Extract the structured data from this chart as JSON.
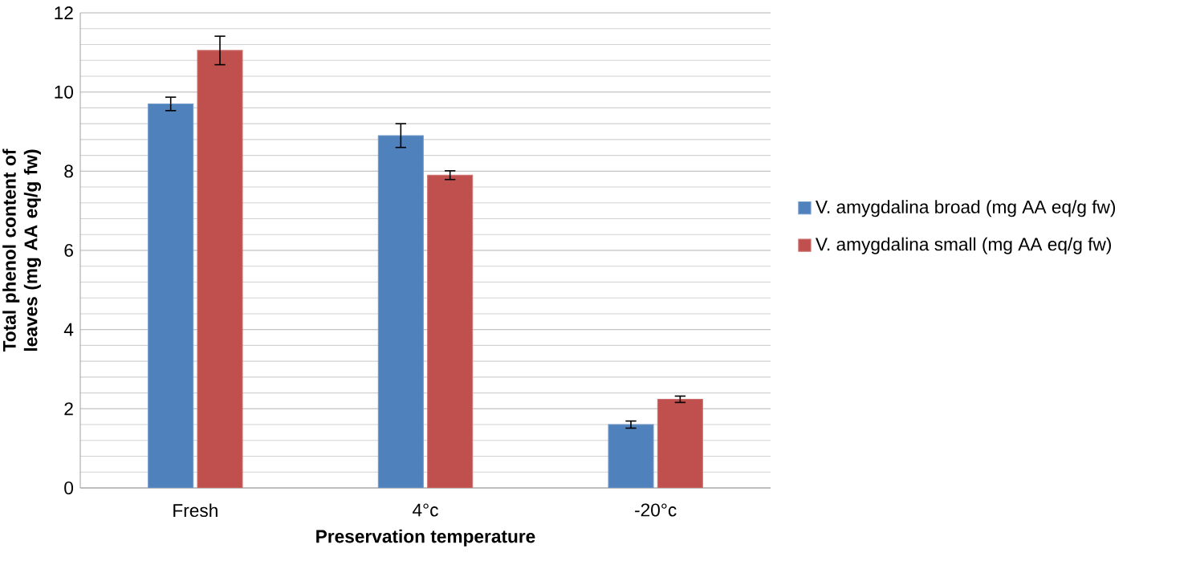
{
  "chart_data": {
    "type": "bar",
    "xlabel": "Preservation temperature",
    "ylabel": "Total phenol content of leaves (mg AA eq/g fw)",
    "categories": [
      "Fresh",
      "4°c",
      "-20°c"
    ],
    "series": [
      {
        "name": "V. amygdalina broad (mg AA eq/g fw)",
        "color": "#4f81bd",
        "values": [
          9.7,
          8.9,
          1.6
        ],
        "errors": [
          0.17,
          0.3,
          0.09
        ]
      },
      {
        "name": "V. amygdalina small (mg AA eq/g fw)",
        "color": "#c0504d",
        "values": [
          11.05,
          7.9,
          2.24
        ],
        "errors": [
          0.36,
          0.11,
          0.08
        ]
      }
    ],
    "ylim": [
      0,
      12
    ],
    "yticks": [
      0,
      2,
      4,
      6,
      8,
      10,
      12
    ],
    "grid": "y",
    "legend": "right"
  }
}
